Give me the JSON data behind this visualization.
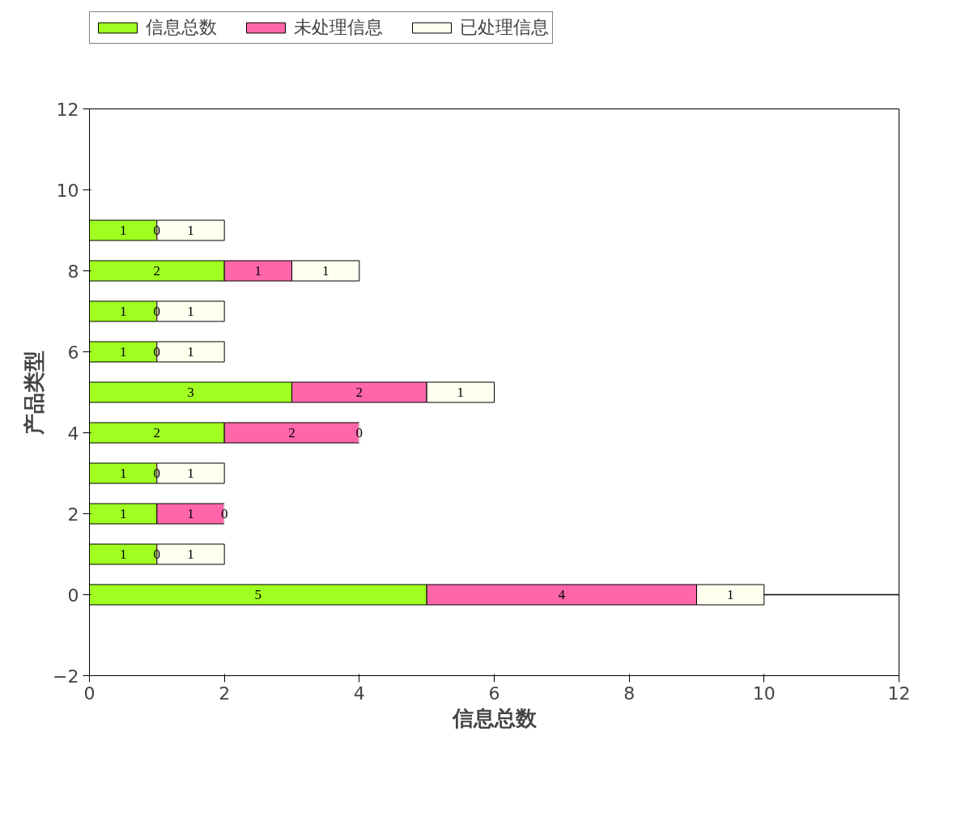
{
  "chart_data": {
    "type": "bar",
    "orientation": "horizontal",
    "stacked": true,
    "data_labels": true,
    "x": [
      0,
      1,
      2,
      3,
      4,
      5,
      6,
      7,
      8,
      9
    ],
    "series": [
      {
        "name": "信息总数",
        "color": "#a0ff20",
        "values": [
          5,
          1,
          1,
          1,
          2,
          3,
          1,
          1,
          2,
          1
        ]
      },
      {
        "name": "未处理信息",
        "color": "#ff66aa",
        "values": [
          4,
          0,
          1,
          0,
          2,
          2,
          0,
          0,
          1,
          0
        ]
      },
      {
        "name": "已处理信息",
        "color": "#fffff0",
        "values": [
          1,
          1,
          0,
          1,
          0,
          1,
          1,
          1,
          1,
          1
        ]
      }
    ],
    "xlabel": "信息总数",
    "ylabel": "产品类型",
    "xlim": [
      0,
      12
    ],
    "xticks": [
      0,
      2,
      4,
      6,
      8,
      10,
      12
    ],
    "ylim": [
      -2,
      12
    ],
    "yticks": [
      -2,
      0,
      2,
      4,
      6,
      8,
      10,
      12
    ],
    "ref_lines": [
      {
        "axis": "y",
        "value": 0,
        "color": "#000000"
      }
    ],
    "grid": false,
    "legend": "top"
  }
}
